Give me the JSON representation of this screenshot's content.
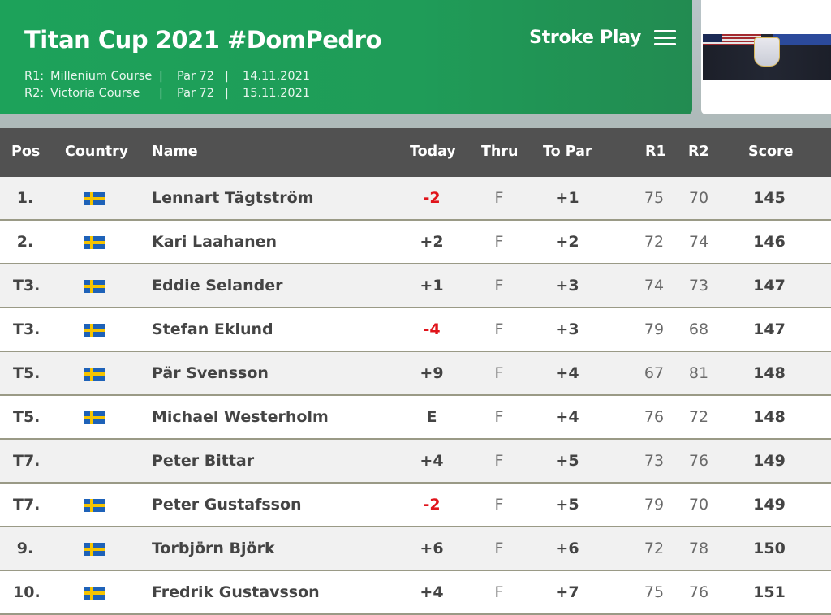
{
  "header": {
    "title": "Titan Cup 2021 #DomPedro",
    "rounds": [
      {
        "id": "R1:",
        "course": "Millenium Course",
        "sep1": "|",
        "par": "Par 72",
        "sep2": "|",
        "date": "14.11.2021"
      },
      {
        "id": "R2:",
        "course": "Victoria Course",
        "sep1": "|",
        "par": "Par 72",
        "sep2": "|",
        "date": "15.11.2021"
      }
    ],
    "mode_label": "Stroke Play",
    "menu_icon": "hamburger-menu-icon"
  },
  "sponsor": {
    "image": "ryder-cup-banner"
  },
  "columns": {
    "pos": "Pos",
    "country": "Country",
    "name": "Name",
    "today": "Today",
    "thru": "Thru",
    "to_par": "To Par",
    "r1": "R1",
    "r2": "R2",
    "score": "Score"
  },
  "colors": {
    "header_green": "#1da25a",
    "table_header": "#515151",
    "negative": "#e0141b"
  },
  "rows": [
    {
      "pos": "1.",
      "flag": true,
      "name": "Lennart Tägtström",
      "today": "-2",
      "neg": true,
      "thru": "F",
      "to_par": "+1",
      "r1": "75",
      "r2": "70",
      "score": "145"
    },
    {
      "pos": "2.",
      "flag": true,
      "name": "Kari Laahanen",
      "today": "+2",
      "neg": false,
      "thru": "F",
      "to_par": "+2",
      "r1": "72",
      "r2": "74",
      "score": "146"
    },
    {
      "pos": "T3.",
      "flag": true,
      "name": "Eddie Selander",
      "today": "+1",
      "neg": false,
      "thru": "F",
      "to_par": "+3",
      "r1": "74",
      "r2": "73",
      "score": "147"
    },
    {
      "pos": "T3.",
      "flag": true,
      "name": "Stefan Eklund",
      "today": "-4",
      "neg": true,
      "thru": "F",
      "to_par": "+3",
      "r1": "79",
      "r2": "68",
      "score": "147"
    },
    {
      "pos": "T5.",
      "flag": true,
      "name": "Pär Svensson",
      "today": "+9",
      "neg": false,
      "thru": "F",
      "to_par": "+4",
      "r1": "67",
      "r2": "81",
      "score": "148"
    },
    {
      "pos": "T5.",
      "flag": true,
      "name": "Michael Westerholm",
      "today": "E",
      "neg": false,
      "thru": "F",
      "to_par": "+4",
      "r1": "76",
      "r2": "72",
      "score": "148"
    },
    {
      "pos": "T7.",
      "flag": false,
      "name": "Peter Bittar",
      "today": "+4",
      "neg": false,
      "thru": "F",
      "to_par": "+5",
      "r1": "73",
      "r2": "76",
      "score": "149"
    },
    {
      "pos": "T7.",
      "flag": true,
      "name": "Peter Gustafsson",
      "today": "-2",
      "neg": true,
      "thru": "F",
      "to_par": "+5",
      "r1": "79",
      "r2": "70",
      "score": "149"
    },
    {
      "pos": "9.",
      "flag": true,
      "name": "Torbjörn Björk",
      "today": "+6",
      "neg": false,
      "thru": "F",
      "to_par": "+6",
      "r1": "72",
      "r2": "78",
      "score": "150"
    },
    {
      "pos": "10.",
      "flag": true,
      "name": "Fredrik Gustavsson",
      "today": "+4",
      "neg": false,
      "thru": "F",
      "to_par": "+7",
      "r1": "75",
      "r2": "76",
      "score": "151"
    }
  ]
}
